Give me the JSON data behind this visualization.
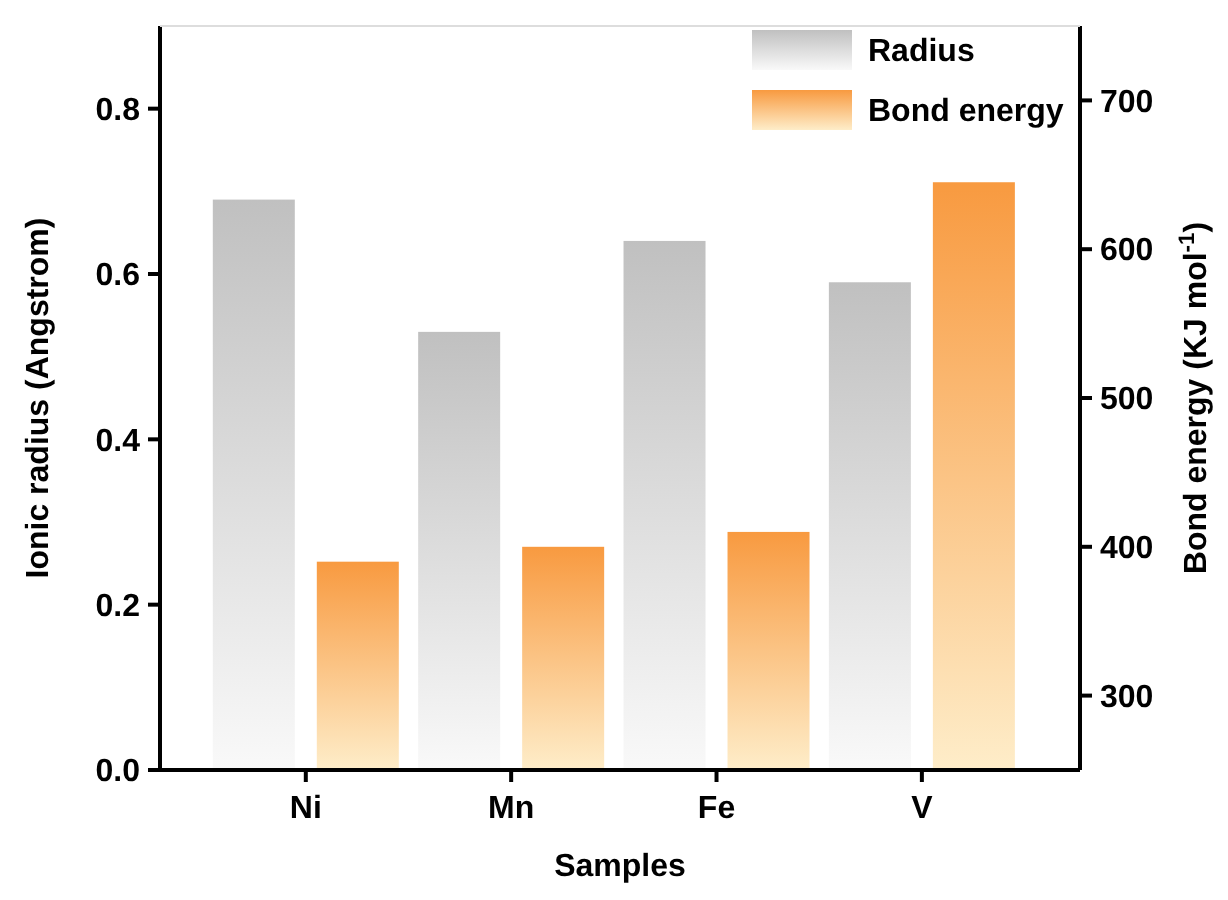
{
  "chart_data": {
    "type": "bar",
    "xlabel": "Samples",
    "ylabel": "Ionic radius (Angstrom)",
    "y2label": "Bond energy (KJ mol$^{-1}$)",
    "categories": [
      "Ni",
      "Mn",
      "Fe",
      "V"
    ],
    "series": [
      {
        "name": "Radius",
        "color": "#c0c0c0",
        "values": [
          0.69,
          0.53,
          0.64,
          0.59
        ]
      },
      {
        "name": "Bond energy",
        "color": "#f89a40",
        "values": [
          390,
          400,
          410,
          645
        ],
        "axis": "y2"
      }
    ],
    "ylim": [
      0,
      0.9
    ],
    "yticks": [
      {
        "value": 0,
        "label": "0.0"
      },
      {
        "value": 0.2,
        "label": "0.2"
      },
      {
        "value": 0.4,
        "label": "0.4"
      },
      {
        "value": 0.6,
        "label": "0.6"
      },
      {
        "value": 0.8,
        "label": "0.8"
      }
    ],
    "y2lim": [
      250,
      750
    ],
    "y2ticks": [
      300,
      400,
      500,
      600,
      700
    ],
    "legend": "top right"
  }
}
